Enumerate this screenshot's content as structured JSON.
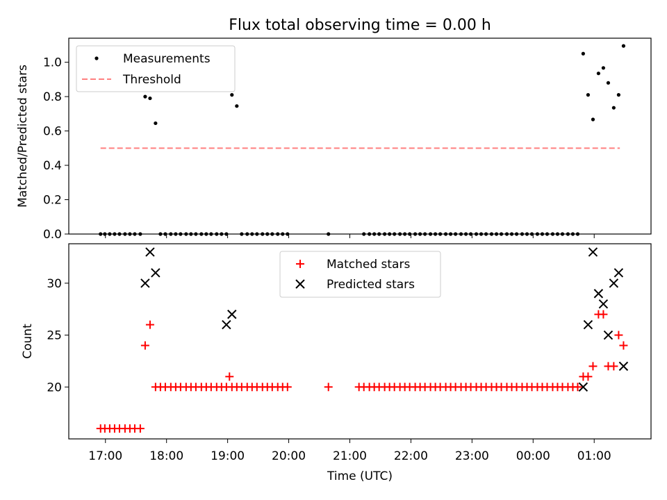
{
  "title": "Flux total observing time = 0.00 h",
  "chart_data": [
    {
      "type": "scatter",
      "panel": "top",
      "ylabel": "Matched/Predicted stars",
      "xlim": [
        16.4,
        25.93
      ],
      "ylim": [
        0,
        1.14
      ],
      "yticks": [
        0.0,
        0.2,
        0.4,
        0.6,
        0.8,
        1.0
      ],
      "ytick_labels": [
        "0.0",
        "0.2",
        "0.4",
        "0.6",
        "0.8",
        "1.0"
      ],
      "legend": {
        "placement": "top-left",
        "measurements_label": "Measurements",
        "threshold_label": "Threshold"
      },
      "colors": {
        "measurements": "#000000",
        "threshold": "#ff7f7f"
      },
      "threshold": {
        "value": 0.5,
        "x_range": [
          16.92,
          25.42
        ]
      },
      "series": [
        {
          "name": "Measurements",
          "points": [
            [
              16.92,
              0
            ],
            [
              16.99,
              0
            ],
            [
              17.07,
              0
            ],
            [
              17.15,
              0
            ],
            [
              17.23,
              0
            ],
            [
              17.32,
              0
            ],
            [
              17.4,
              0
            ],
            [
              17.48,
              0
            ],
            [
              17.57,
              0
            ],
            [
              17.65,
              0.8
            ],
            [
              17.73,
              0.79
            ],
            [
              17.82,
              0.645
            ],
            [
              17.9,
              0
            ],
            [
              17.98,
              0
            ],
            [
              18.07,
              0
            ],
            [
              18.15,
              0
            ],
            [
              18.23,
              0
            ],
            [
              18.32,
              0
            ],
            [
              18.4,
              0
            ],
            [
              18.48,
              0
            ],
            [
              18.57,
              0
            ],
            [
              18.65,
              0
            ],
            [
              18.73,
              0
            ],
            [
              18.82,
              0
            ],
            [
              18.9,
              0
            ],
            [
              18.98,
              0
            ],
            [
              19.07,
              0.81
            ],
            [
              19.15,
              0.745
            ],
            [
              19.23,
              0
            ],
            [
              19.32,
              0
            ],
            [
              19.4,
              0
            ],
            [
              19.48,
              0
            ],
            [
              19.57,
              0
            ],
            [
              19.65,
              0
            ],
            [
              19.73,
              0
            ],
            [
              19.82,
              0
            ],
            [
              19.9,
              0
            ],
            [
              19.98,
              0
            ],
            [
              20.65,
              0
            ],
            [
              21.23,
              0
            ],
            [
              21.32,
              0
            ],
            [
              21.4,
              0
            ],
            [
              21.48,
              0
            ],
            [
              21.57,
              0
            ],
            [
              21.65,
              0
            ],
            [
              21.73,
              0
            ],
            [
              21.82,
              0
            ],
            [
              21.9,
              0
            ],
            [
              21.98,
              0
            ],
            [
              22.07,
              0
            ],
            [
              22.15,
              0
            ],
            [
              22.23,
              0
            ],
            [
              22.32,
              0
            ],
            [
              22.4,
              0
            ],
            [
              22.48,
              0
            ],
            [
              22.57,
              0
            ],
            [
              22.65,
              0
            ],
            [
              22.73,
              0
            ],
            [
              22.82,
              0
            ],
            [
              22.9,
              0
            ],
            [
              22.98,
              0
            ],
            [
              23.07,
              0
            ],
            [
              23.15,
              0
            ],
            [
              23.23,
              0
            ],
            [
              23.32,
              0
            ],
            [
              23.4,
              0
            ],
            [
              23.48,
              0
            ],
            [
              23.57,
              0
            ],
            [
              23.65,
              0
            ],
            [
              23.73,
              0
            ],
            [
              23.82,
              0
            ],
            [
              23.9,
              0
            ],
            [
              23.98,
              0
            ],
            [
              24.07,
              0
            ],
            [
              24.15,
              0
            ],
            [
              24.23,
              0
            ],
            [
              24.32,
              0
            ],
            [
              24.4,
              0
            ],
            [
              24.48,
              0
            ],
            [
              24.57,
              0
            ],
            [
              24.65,
              0
            ],
            [
              24.73,
              0
            ],
            [
              24.82,
              1.05
            ],
            [
              24.9,
              0.81
            ],
            [
              24.98,
              0.667
            ],
            [
              25.07,
              0.935
            ],
            [
              25.15,
              0.967
            ],
            [
              25.23,
              0.88
            ],
            [
              25.32,
              0.735
            ],
            [
              25.4,
              0.81
            ],
            [
              25.48,
              1.095
            ]
          ]
        }
      ]
    },
    {
      "type": "scatter",
      "panel": "bottom",
      "xlabel": "Time (UTC)",
      "ylabel": "Count",
      "xlim": [
        16.4,
        25.93
      ],
      "ylim": [
        15.0,
        33.8
      ],
      "yticks": [
        20,
        25,
        30
      ],
      "ytick_labels": [
        "20",
        "25",
        "30"
      ],
      "xticks": [
        17,
        18,
        19,
        20,
        21,
        22,
        23,
        24,
        25
      ],
      "xtick_labels": [
        "17:00",
        "18:00",
        "19:00",
        "20:00",
        "21:00",
        "22:00",
        "23:00",
        "00:00",
        "01:00"
      ],
      "legend": {
        "placement": "top-center",
        "matched_label": "Matched stars",
        "predicted_label": "Predicted stars"
      },
      "colors": {
        "matched": "#ff0000",
        "predicted": "#000000"
      },
      "series": [
        {
          "name": "Matched stars",
          "marker": "+",
          "points": [
            [
              16.92,
              16
            ],
            [
              16.99,
              16
            ],
            [
              17.07,
              16
            ],
            [
              17.15,
              16
            ],
            [
              17.23,
              16
            ],
            [
              17.32,
              16
            ],
            [
              17.4,
              16
            ],
            [
              17.48,
              16
            ],
            [
              17.57,
              16
            ],
            [
              17.65,
              24
            ],
            [
              17.73,
              26
            ],
            [
              17.82,
              20
            ],
            [
              17.9,
              20
            ],
            [
              17.98,
              20
            ],
            [
              18.07,
              20
            ],
            [
              18.15,
              20
            ],
            [
              18.23,
              20
            ],
            [
              18.32,
              20
            ],
            [
              18.4,
              20
            ],
            [
              18.48,
              20
            ],
            [
              18.57,
              20
            ],
            [
              18.65,
              20
            ],
            [
              18.73,
              20
            ],
            [
              18.82,
              20
            ],
            [
              18.9,
              20
            ],
            [
              18.98,
              20
            ],
            [
              19.03,
              21
            ],
            [
              19.07,
              20
            ],
            [
              19.15,
              20
            ],
            [
              19.23,
              20
            ],
            [
              19.32,
              20
            ],
            [
              19.4,
              20
            ],
            [
              19.48,
              20
            ],
            [
              19.57,
              20
            ],
            [
              19.65,
              20
            ],
            [
              19.73,
              20
            ],
            [
              19.82,
              20
            ],
            [
              19.9,
              20
            ],
            [
              19.98,
              20
            ],
            [
              20.65,
              20
            ],
            [
              21.15,
              20
            ],
            [
              21.23,
              20
            ],
            [
              21.32,
              20
            ],
            [
              21.4,
              20
            ],
            [
              21.48,
              20
            ],
            [
              21.57,
              20
            ],
            [
              21.65,
              20
            ],
            [
              21.73,
              20
            ],
            [
              21.82,
              20
            ],
            [
              21.9,
              20
            ],
            [
              21.98,
              20
            ],
            [
              22.07,
              20
            ],
            [
              22.15,
              20
            ],
            [
              22.23,
              20
            ],
            [
              22.32,
              20
            ],
            [
              22.4,
              20
            ],
            [
              22.48,
              20
            ],
            [
              22.57,
              20
            ],
            [
              22.65,
              20
            ],
            [
              22.73,
              20
            ],
            [
              22.82,
              20
            ],
            [
              22.9,
              20
            ],
            [
              22.98,
              20
            ],
            [
              23.07,
              20
            ],
            [
              23.15,
              20
            ],
            [
              23.23,
              20
            ],
            [
              23.32,
              20
            ],
            [
              23.4,
              20
            ],
            [
              23.48,
              20
            ],
            [
              23.57,
              20
            ],
            [
              23.65,
              20
            ],
            [
              23.73,
              20
            ],
            [
              23.82,
              20
            ],
            [
              23.9,
              20
            ],
            [
              23.98,
              20
            ],
            [
              24.07,
              20
            ],
            [
              24.15,
              20
            ],
            [
              24.23,
              20
            ],
            [
              24.32,
              20
            ],
            [
              24.4,
              20
            ],
            [
              24.48,
              20
            ],
            [
              24.57,
              20
            ],
            [
              24.65,
              20
            ],
            [
              24.73,
              20
            ],
            [
              24.82,
              21
            ],
            [
              24.9,
              21
            ],
            [
              24.98,
              22
            ],
            [
              25.07,
              27
            ],
            [
              25.15,
              27
            ],
            [
              25.23,
              22
            ],
            [
              25.32,
              22
            ],
            [
              25.4,
              25
            ],
            [
              25.48,
              24
            ]
          ]
        },
        {
          "name": "Predicted stars",
          "marker": "x",
          "points": [
            [
              17.65,
              30
            ],
            [
              17.73,
              33
            ],
            [
              17.82,
              31
            ],
            [
              18.98,
              26
            ],
            [
              19.07,
              27
            ],
            [
              24.82,
              20
            ],
            [
              24.9,
              26
            ],
            [
              24.98,
              33
            ],
            [
              25.07,
              29
            ],
            [
              25.15,
              28
            ],
            [
              25.23,
              25
            ],
            [
              25.32,
              30
            ],
            [
              25.4,
              31
            ],
            [
              25.48,
              22
            ]
          ]
        }
      ]
    }
  ]
}
